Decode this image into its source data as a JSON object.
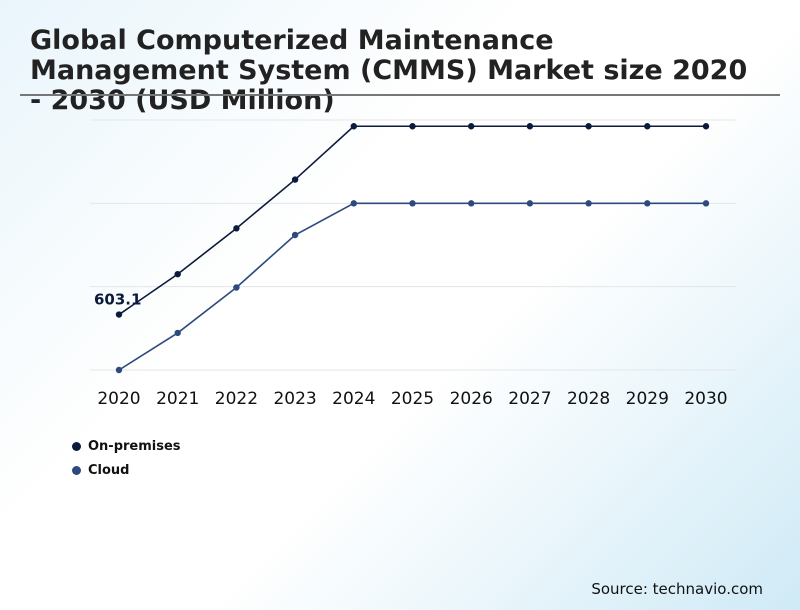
{
  "chart_data": {
    "type": "line",
    "title": "Global Computerized Maintenance Management System (CMMS) Market size 2020 - 2030 (USD Million)",
    "x": [
      "2020",
      "2021",
      "2022",
      "2023",
      "2024",
      "2025",
      "2026",
      "2027",
      "2028",
      "2029",
      "2030"
    ],
    "ylim": [
      470,
      1070
    ],
    "grid": true,
    "legend_position": "bottom-left",
    "series": [
      {
        "name": "On-premises",
        "color": "#0c1a3c",
        "values": [
          603.1,
          700,
          810,
          927,
          1055,
          1055,
          1055,
          1055,
          1055,
          1055,
          1055
        ]
      },
      {
        "name": "Cloud",
        "color": "#2e4a7d",
        "values": [
          470,
          559,
          668,
          794,
          870,
          870,
          870,
          870,
          870,
          870,
          870
        ]
      }
    ],
    "annotations": [
      {
        "series": 0,
        "index": 0,
        "text": "603.1"
      }
    ]
  },
  "source": "Source: technavio.com"
}
